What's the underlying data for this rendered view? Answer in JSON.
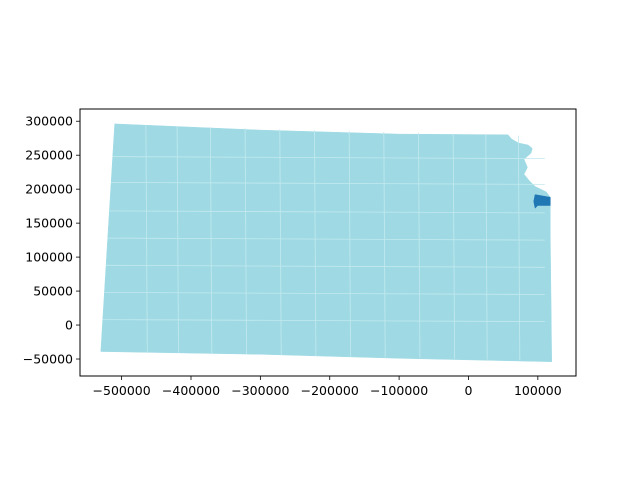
{
  "chart_data": {
    "type": "map",
    "title": "",
    "xlabel": "",
    "ylabel": "",
    "xlim": [
      -560000,
      155000
    ],
    "ylim": [
      -75000,
      318000
    ],
    "x_ticks": [
      -500000,
      -400000,
      -300000,
      -200000,
      -100000,
      0,
      100000
    ],
    "x_tick_labels": [
      "−500000",
      "−400000",
      "−300000",
      "−200000",
      "−100000",
      "0",
      "100000"
    ],
    "y_ticks": [
      -50000,
      0,
      50000,
      100000,
      150000,
      200000,
      250000,
      300000
    ],
    "y_tick_labels": [
      "−50000",
      "0",
      "50000",
      "100000",
      "150000",
      "200000",
      "250000",
      "300000"
    ],
    "grid": false,
    "legend": "none",
    "regions": [
      {
        "name_shown": "",
        "highlighted": false,
        "color": "#9fdae4"
      },
      {
        "name_shown": "",
        "highlighted": true,
        "color": "#1f77b4"
      }
    ],
    "colors": {
      "base_fill": "#9fdae4",
      "boundary": "#c3e9ef",
      "highlight_fill": "#1f77b4",
      "axes": "#000000"
    }
  }
}
